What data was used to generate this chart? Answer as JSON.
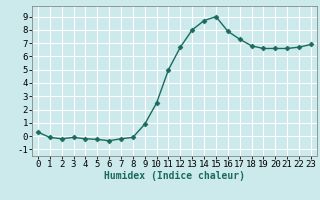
{
  "x": [
    0,
    1,
    2,
    3,
    4,
    5,
    6,
    7,
    8,
    9,
    10,
    11,
    12,
    13,
    14,
    15,
    16,
    17,
    18,
    19,
    20,
    21,
    22,
    23
  ],
  "y": [
    0.3,
    -0.1,
    -0.2,
    -0.1,
    -0.2,
    -0.25,
    -0.35,
    -0.2,
    -0.1,
    0.9,
    2.5,
    5.0,
    6.7,
    8.0,
    8.7,
    9.0,
    7.9,
    7.3,
    6.8,
    6.6,
    6.6,
    6.6,
    6.7,
    6.9
  ],
  "line_color": "#1a6b5e",
  "marker": "D",
  "marker_size": 2.5,
  "bg_color": "#cce9ec",
  "grid_color": "#ffffff",
  "xlabel": "Humidex (Indice chaleur)",
  "ylim": [
    -1.5,
    9.8
  ],
  "xlim": [
    -0.5,
    23.5
  ],
  "yticks": [
    -1,
    0,
    1,
    2,
    3,
    4,
    5,
    6,
    7,
    8,
    9
  ],
  "xticks": [
    0,
    1,
    2,
    3,
    4,
    5,
    6,
    7,
    8,
    9,
    10,
    11,
    12,
    13,
    14,
    15,
    16,
    17,
    18,
    19,
    20,
    21,
    22,
    23
  ],
  "xlabel_fontsize": 7,
  "tick_fontsize": 6.5,
  "linewidth": 1.0
}
